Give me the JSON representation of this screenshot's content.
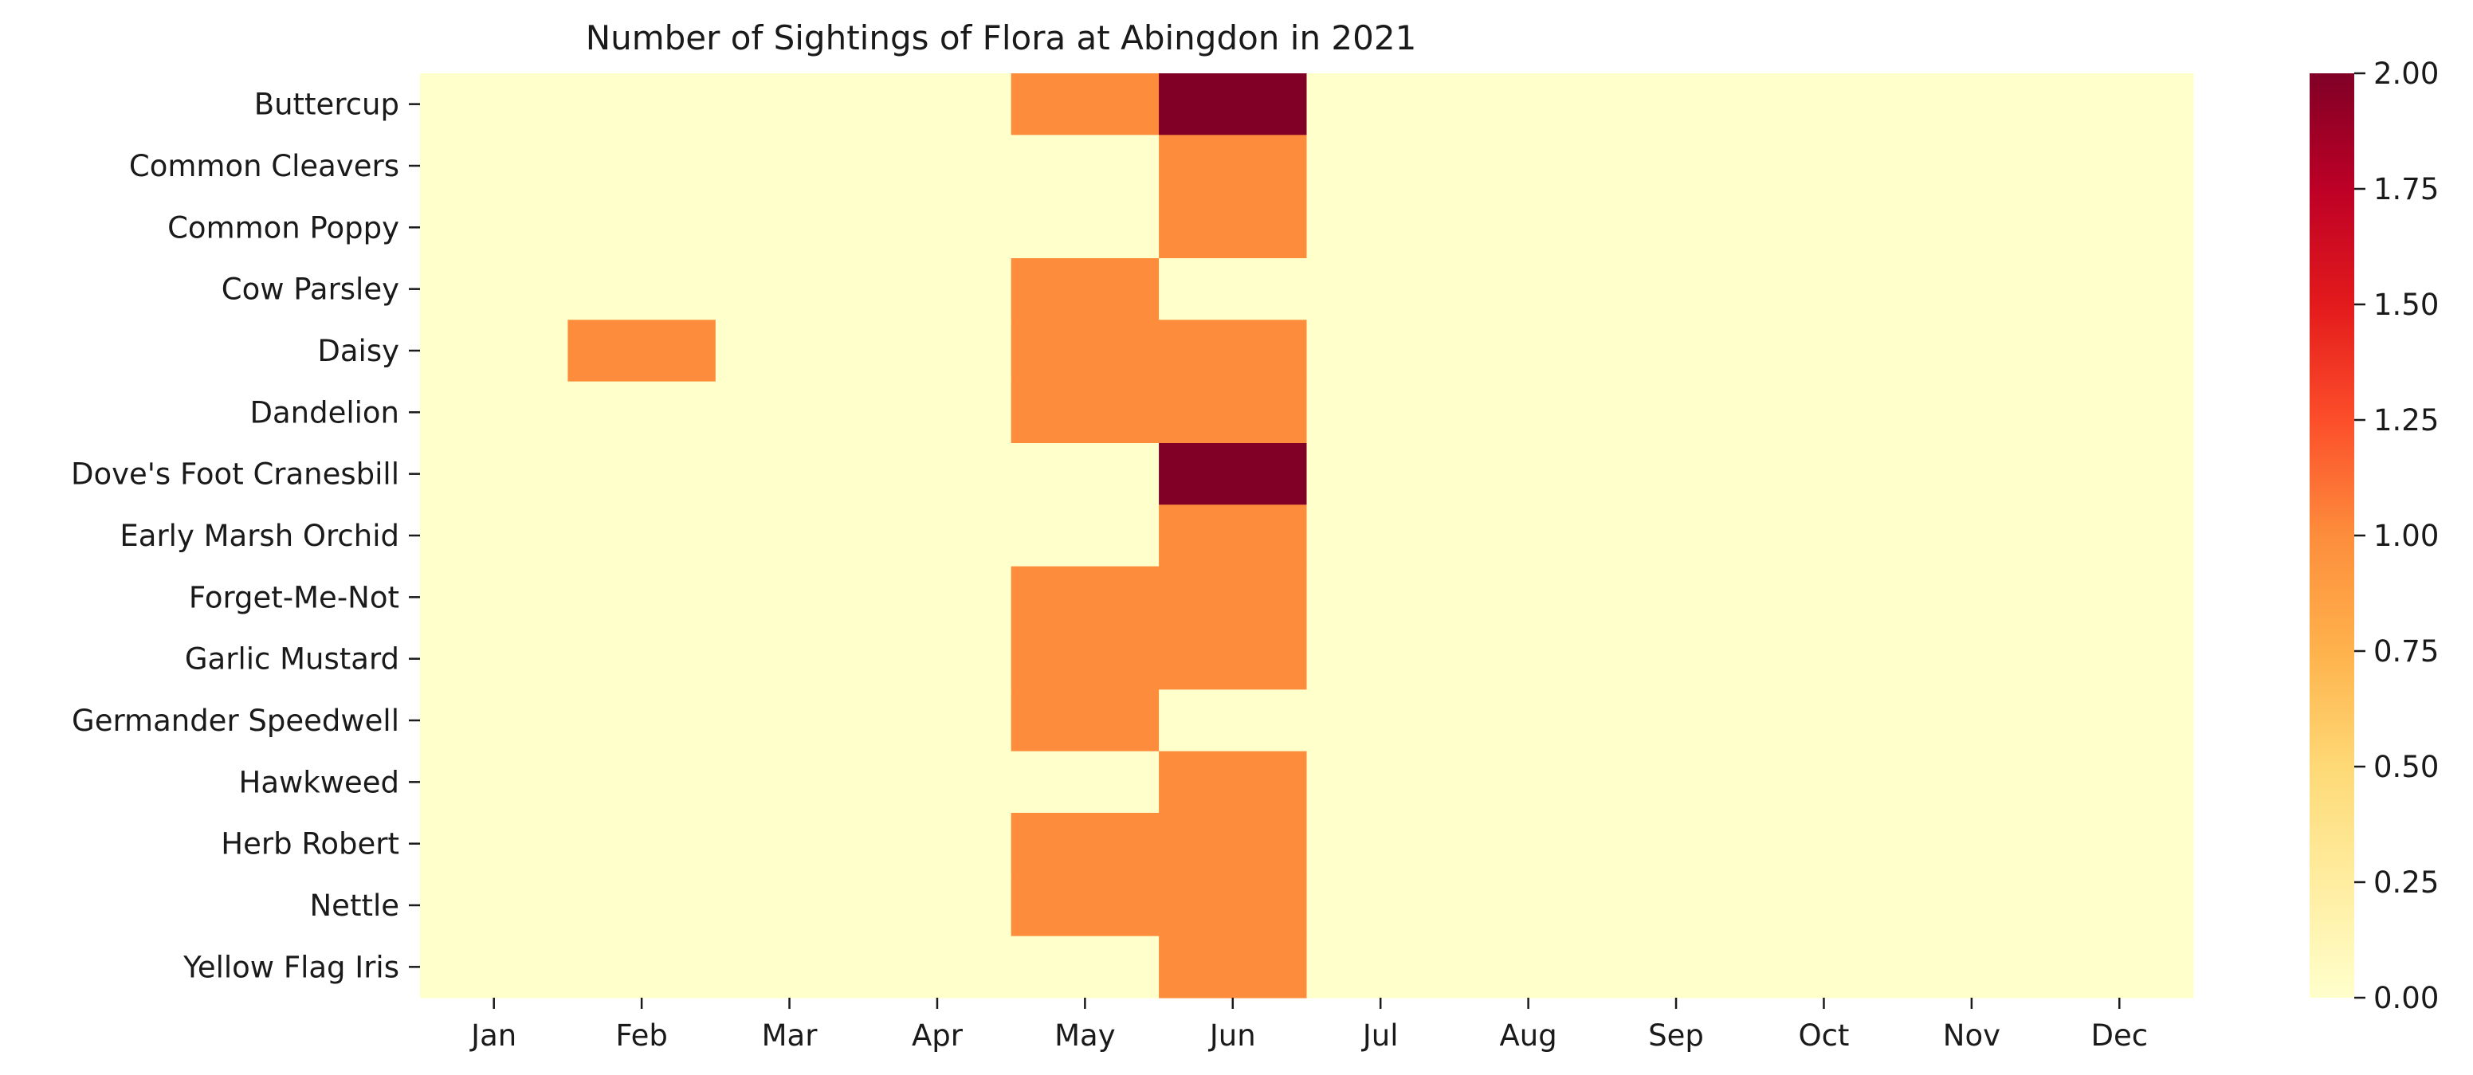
{
  "chart_data": {
    "type": "heatmap",
    "title": "Number of Sightings of Flora at Abingdon in 2021",
    "xlabel": "",
    "ylabel": "",
    "x": [
      "Jan",
      "Feb",
      "Mar",
      "Apr",
      "May",
      "Jun",
      "Jul",
      "Aug",
      "Sep",
      "Oct",
      "Nov",
      "Dec"
    ],
    "y": [
      "Buttercup",
      "Common Cleavers",
      "Common Poppy",
      "Cow Parsley",
      "Daisy",
      "Dandelion",
      "Dove's Foot Cranesbill",
      "Early Marsh Orchid",
      "Forget-Me-Not",
      "Garlic Mustard",
      "Germander Speedwell",
      "Hawkweed",
      "Herb Robert",
      "Nettle",
      "Yellow Flag Iris"
    ],
    "values": [
      [
        0,
        0,
        0,
        0,
        1,
        2,
        0,
        0,
        0,
        0,
        0,
        0
      ],
      [
        0,
        0,
        0,
        0,
        0,
        1,
        0,
        0,
        0,
        0,
        0,
        0
      ],
      [
        0,
        0,
        0,
        0,
        0,
        1,
        0,
        0,
        0,
        0,
        0,
        0
      ],
      [
        0,
        0,
        0,
        0,
        1,
        0,
        0,
        0,
        0,
        0,
        0,
        0
      ],
      [
        0,
        1,
        0,
        0,
        1,
        1,
        0,
        0,
        0,
        0,
        0,
        0
      ],
      [
        0,
        0,
        0,
        0,
        1,
        1,
        0,
        0,
        0,
        0,
        0,
        0
      ],
      [
        0,
        0,
        0,
        0,
        0,
        2,
        0,
        0,
        0,
        0,
        0,
        0
      ],
      [
        0,
        0,
        0,
        0,
        0,
        1,
        0,
        0,
        0,
        0,
        0,
        0
      ],
      [
        0,
        0,
        0,
        0,
        1,
        1,
        0,
        0,
        0,
        0,
        0,
        0
      ],
      [
        0,
        0,
        0,
        0,
        1,
        1,
        0,
        0,
        0,
        0,
        0,
        0
      ],
      [
        0,
        0,
        0,
        0,
        1,
        0,
        0,
        0,
        0,
        0,
        0,
        0
      ],
      [
        0,
        0,
        0,
        0,
        0,
        1,
        0,
        0,
        0,
        0,
        0,
        0
      ],
      [
        0,
        0,
        0,
        0,
        1,
        1,
        0,
        0,
        0,
        0,
        0,
        0
      ],
      [
        0,
        0,
        0,
        0,
        1,
        1,
        0,
        0,
        0,
        0,
        0,
        0
      ],
      [
        0,
        0,
        0,
        0,
        0,
        1,
        0,
        0,
        0,
        0,
        0,
        0
      ]
    ],
    "colorbar": {
      "min": 0,
      "max": 2,
      "ticks": [
        "0.00",
        "0.25",
        "0.50",
        "0.75",
        "1.00",
        "1.25",
        "1.50",
        "1.75",
        "2.00"
      ],
      "colormap": "YlOrRd"
    },
    "grid": false,
    "legend": "colorbar right"
  }
}
